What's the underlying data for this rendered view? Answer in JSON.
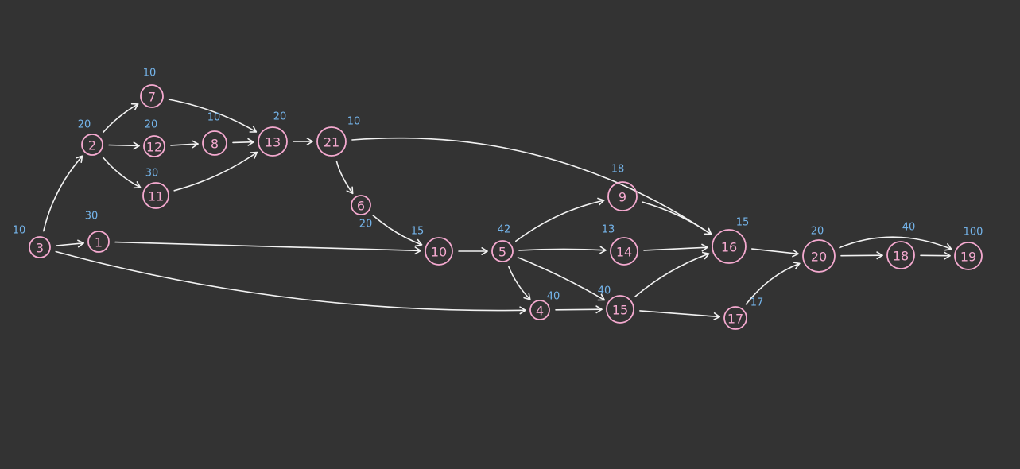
{
  "diagram": {
    "nodes": [
      {
        "id": "3",
        "label": "3",
        "weight": "10"
      },
      {
        "id": "1",
        "label": "1",
        "weight": "30"
      },
      {
        "id": "2",
        "label": "2",
        "weight": "20"
      },
      {
        "id": "7",
        "label": "7",
        "weight": "10"
      },
      {
        "id": "12",
        "label": "12",
        "weight": "20"
      },
      {
        "id": "11",
        "label": "11",
        "weight": "30"
      },
      {
        "id": "8",
        "label": "8",
        "weight": "10"
      },
      {
        "id": "13",
        "label": "13",
        "weight": "20"
      },
      {
        "id": "21",
        "label": "21",
        "weight": "10"
      },
      {
        "id": "6",
        "label": "6",
        "weight": "20"
      },
      {
        "id": "10",
        "label": "10",
        "weight": "15"
      },
      {
        "id": "5",
        "label": "5",
        "weight": "42"
      },
      {
        "id": "4",
        "label": "4",
        "weight": "40"
      },
      {
        "id": "9",
        "label": "9",
        "weight": "18"
      },
      {
        "id": "14",
        "label": "14",
        "weight": "13"
      },
      {
        "id": "15",
        "label": "15",
        "weight": "40"
      },
      {
        "id": "16",
        "label": "16",
        "weight": "15"
      },
      {
        "id": "17",
        "label": "17",
        "weight": "17"
      },
      {
        "id": "20",
        "label": "20",
        "weight": "20"
      },
      {
        "id": "18",
        "label": "18",
        "weight": "40"
      },
      {
        "id": "19",
        "label": "19",
        "weight": "100"
      }
    ],
    "edges": [
      {
        "from": "3",
        "to": "2"
      },
      {
        "from": "3",
        "to": "1"
      },
      {
        "from": "3",
        "to": "4"
      },
      {
        "from": "1",
        "to": "10"
      },
      {
        "from": "2",
        "to": "7"
      },
      {
        "from": "2",
        "to": "12"
      },
      {
        "from": "2",
        "to": "11"
      },
      {
        "from": "12",
        "to": "8"
      },
      {
        "from": "8",
        "to": "13"
      },
      {
        "from": "7",
        "to": "13"
      },
      {
        "from": "11",
        "to": "13"
      },
      {
        "from": "13",
        "to": "21"
      },
      {
        "from": "21",
        "to": "6"
      },
      {
        "from": "21",
        "to": "16"
      },
      {
        "from": "6",
        "to": "10"
      },
      {
        "from": "10",
        "to": "5"
      },
      {
        "from": "5",
        "to": "9"
      },
      {
        "from": "5",
        "to": "14"
      },
      {
        "from": "5",
        "to": "15"
      },
      {
        "from": "5",
        "to": "4"
      },
      {
        "from": "4",
        "to": "15"
      },
      {
        "from": "9",
        "to": "16"
      },
      {
        "from": "14",
        "to": "16"
      },
      {
        "from": "15",
        "to": "16"
      },
      {
        "from": "15",
        "to": "17"
      },
      {
        "from": "16",
        "to": "20"
      },
      {
        "from": "17",
        "to": "20"
      },
      {
        "from": "20",
        "to": "18"
      },
      {
        "from": "20",
        "to": "19"
      },
      {
        "from": "18",
        "to": "19"
      }
    ]
  }
}
